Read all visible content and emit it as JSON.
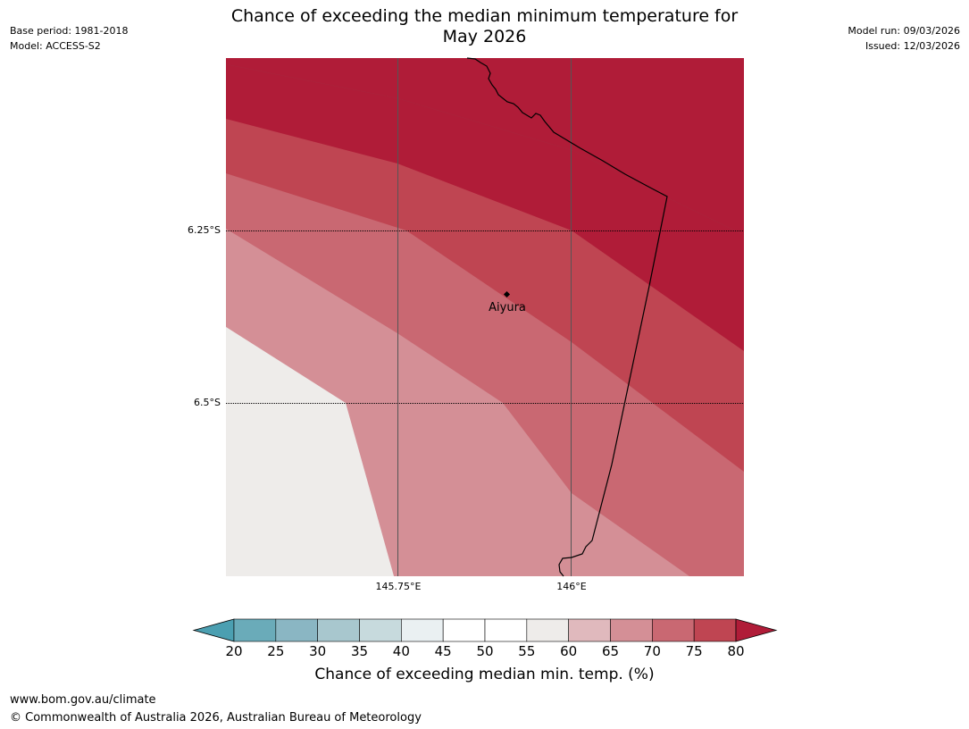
{
  "header": {
    "base_period": "Base period: 1981-2018",
    "model": "Model: ACCESS-S2",
    "title_line1": "Chance of exceeding the median minimum temperature for",
    "title_line2": "May 2026",
    "model_run": "Model run: 09/03/2026",
    "issued": "Issued: 12/03/2026"
  },
  "map": {
    "lat_labels": [
      "6.25°S",
      "6.5°S"
    ],
    "lon_labels": [
      "145.75°E",
      "146°E"
    ],
    "place": "Aiyura"
  },
  "colorbar": {
    "ticks": [
      "20",
      "25",
      "30",
      "35",
      "40",
      "45",
      "50",
      "55",
      "60",
      "65",
      "70",
      "75",
      "80"
    ],
    "colors": [
      "#6aabb9",
      "#8ab6c3",
      "#a8c7ce",
      "#c7dadd",
      "#eaf0f2",
      "#ffffff",
      "#ffffff",
      "#eeecea",
      "#e0b9bd",
      "#d48f96",
      "#c96872",
      "#bf4552"
    ],
    "under_color": "#4b9fb1",
    "over_color": "#b01c38",
    "title": "Chance of exceeding median min. temp. (%)"
  },
  "footer": {
    "url": "www.bom.gov.au/climate",
    "copyright": "© Commonwealth of Australia 2026, Australian Bureau of Meteorology"
  }
}
